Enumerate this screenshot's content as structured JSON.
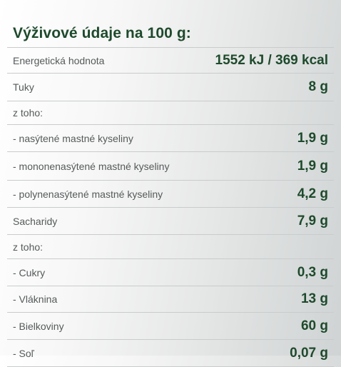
{
  "title": "Výživové údaje na 100 g:",
  "rows": [
    {
      "label": "Energetická hodnota",
      "value": "1552 kJ / 369 kcal"
    },
    {
      "label": "Tuky",
      "value": "8 g"
    },
    {
      "label": "z toho:",
      "value": ""
    },
    {
      "label": "- nasýtené mastné kyseliny",
      "value": "1,9 g"
    },
    {
      "label": "- mononenasýtené mastné kyseliny",
      "value": "1,9 g"
    },
    {
      "label": "- polynenasýtené mastné kyseliny",
      "value": "4,2 g"
    },
    {
      "label": "Sacharidy",
      "value": "7,9 g"
    },
    {
      "label": "z toho:",
      "value": ""
    },
    {
      "label": "- Cukry",
      "value": "0,3 g"
    },
    {
      "label": "- Vláknina",
      "value": "13 g"
    },
    {
      "label": "- Bielkoviny",
      "value": "60 g"
    },
    {
      "label": "- Soľ",
      "value": "0,07 g"
    }
  ]
}
